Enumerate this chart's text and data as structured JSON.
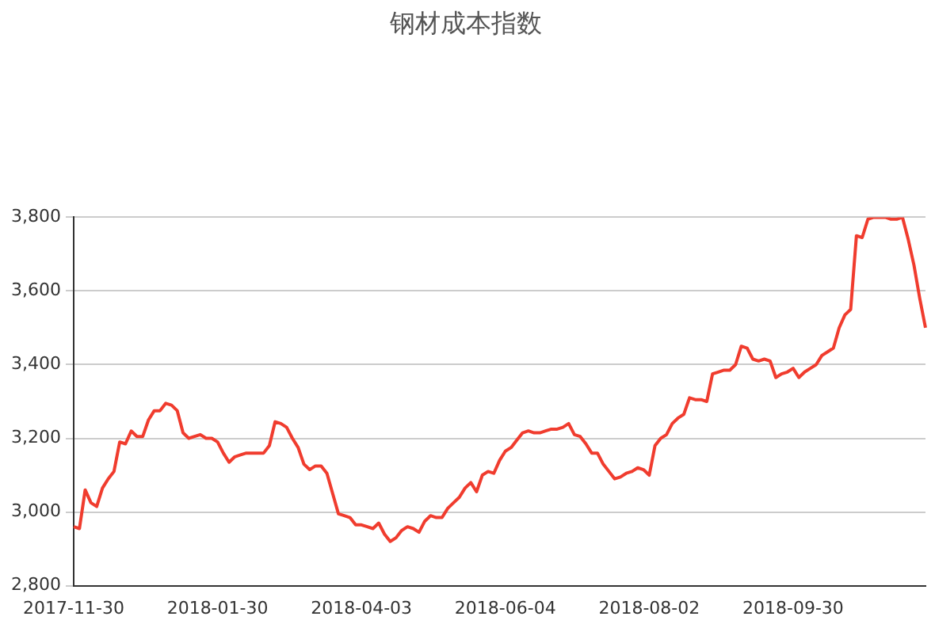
{
  "chart_data": {
    "type": "line",
    "title": "钢材成本指数",
    "categories": [
      "2017-11-30",
      null,
      null,
      null,
      null,
      null,
      null,
      null,
      null,
      null,
      null,
      null,
      null,
      null,
      null,
      null,
      null,
      null,
      null,
      null,
      null,
      null,
      null,
      null,
      null,
      "2018-01-30",
      null,
      null,
      null,
      null,
      null,
      null,
      null,
      null,
      null,
      null,
      null,
      null,
      null,
      null,
      null,
      null,
      null,
      null,
      null,
      null,
      null,
      null,
      null,
      null,
      "2018-04-03",
      null,
      null,
      null,
      null,
      null,
      null,
      null,
      null,
      null,
      null,
      null,
      null,
      null,
      null,
      null,
      null,
      null,
      null,
      null,
      null,
      null,
      null,
      null,
      null,
      "2018-06-04",
      null,
      null,
      null,
      null,
      null,
      null,
      null,
      null,
      null,
      null,
      null,
      null,
      null,
      null,
      null,
      null,
      null,
      null,
      null,
      null,
      null,
      null,
      null,
      null,
      "2018-08-02",
      null,
      null,
      null,
      null,
      null,
      null,
      null,
      null,
      null,
      null,
      null,
      null,
      null,
      null,
      null,
      null,
      null,
      null,
      null,
      null,
      null,
      null,
      null,
      null,
      "2018-09-30",
      null,
      null,
      null,
      null,
      null,
      null,
      null,
      null,
      null,
      null,
      null,
      null,
      null,
      null,
      null,
      null,
      null,
      null,
      null,
      null,
      null,
      null,
      null
    ],
    "series": [
      {
        "color": "#f03c2e",
        "values": [
          2960,
          2955,
          3060,
          3025,
          3015,
          3065,
          3090,
          3110,
          3190,
          3185,
          3220,
          3205,
          3205,
          3250,
          3275,
          3275,
          3295,
          3290,
          3275,
          3215,
          3200,
          3205,
          3210,
          3200,
          3200,
          3190,
          3160,
          3135,
          3150,
          3155,
          3160,
          3160,
          3160,
          3160,
          3180,
          3245,
          3240,
          3230,
          3200,
          3175,
          3130,
          3115,
          3125,
          3125,
          3105,
          3050,
          2995,
          2990,
          2985,
          2965,
          2965,
          2960,
          2955,
          2970,
          2940,
          2920,
          2930,
          2950,
          2960,
          2955,
          2945,
          2975,
          2990,
          2985,
          2985,
          3010,
          3025,
          3040,
          3065,
          3080,
          3055,
          3100,
          3110,
          3105,
          3140,
          3165,
          3175,
          3195,
          3215,
          3220,
          3215,
          3215,
          3220,
          3225,
          3225,
          3230,
          3240,
          3210,
          3205,
          3185,
          3160,
          3160,
          3130,
          3110,
          3090,
          3095,
          3105,
          3110,
          3120,
          3115,
          3100,
          3180,
          3200,
          3210,
          3240,
          3255,
          3265,
          3310,
          3305,
          3305,
          3300,
          3375,
          3380,
          3385,
          3385,
          3400,
          3450,
          3445,
          3415,
          3410,
          3415,
          3410,
          3365,
          3375,
          3380,
          3390,
          3365,
          3380,
          3390,
          3400,
          3425,
          3435,
          3445,
          3500,
          3535,
          3550,
          3750,
          3745,
          3795,
          3800,
          3800,
          3800,
          3795,
          3795,
          3800,
          3740,
          3670,
          3580,
          3500
        ]
      }
    ],
    "ylim": [
      2800,
      3800
    ],
    "yticks": [
      {
        "value": 2800,
        "label": "2,800"
      },
      {
        "value": 3000,
        "label": "3,000"
      },
      {
        "value": 3200,
        "label": "3,200"
      },
      {
        "value": 3400,
        "label": "3,400"
      },
      {
        "value": 3600,
        "label": "3,600"
      },
      {
        "value": 3800,
        "label": "3,800"
      }
    ],
    "grid": "y",
    "legend": false,
    "marker": "none",
    "line_style": "solid"
  }
}
